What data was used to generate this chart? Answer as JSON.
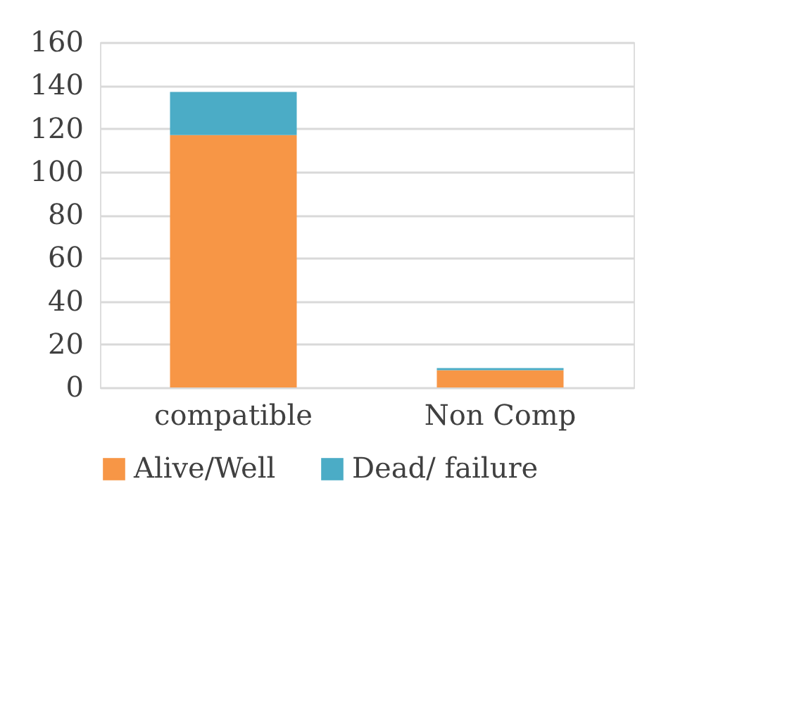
{
  "chart_data": {
    "type": "bar",
    "stacked": true,
    "categories": [
      "compatible",
      "Non Comp"
    ],
    "series": [
      {
        "name": "Alive/Well",
        "color": "#f79646",
        "values": [
          117,
          8
        ]
      },
      {
        "name": "Dead/ failure",
        "color": "#4bacc6",
        "values": [
          20,
          1
        ]
      }
    ],
    "ylim": [
      0,
      160
    ],
    "yticks": [
      0,
      20,
      40,
      60,
      80,
      100,
      120,
      140,
      160
    ],
    "grid": "y",
    "legend": "bottom"
  }
}
